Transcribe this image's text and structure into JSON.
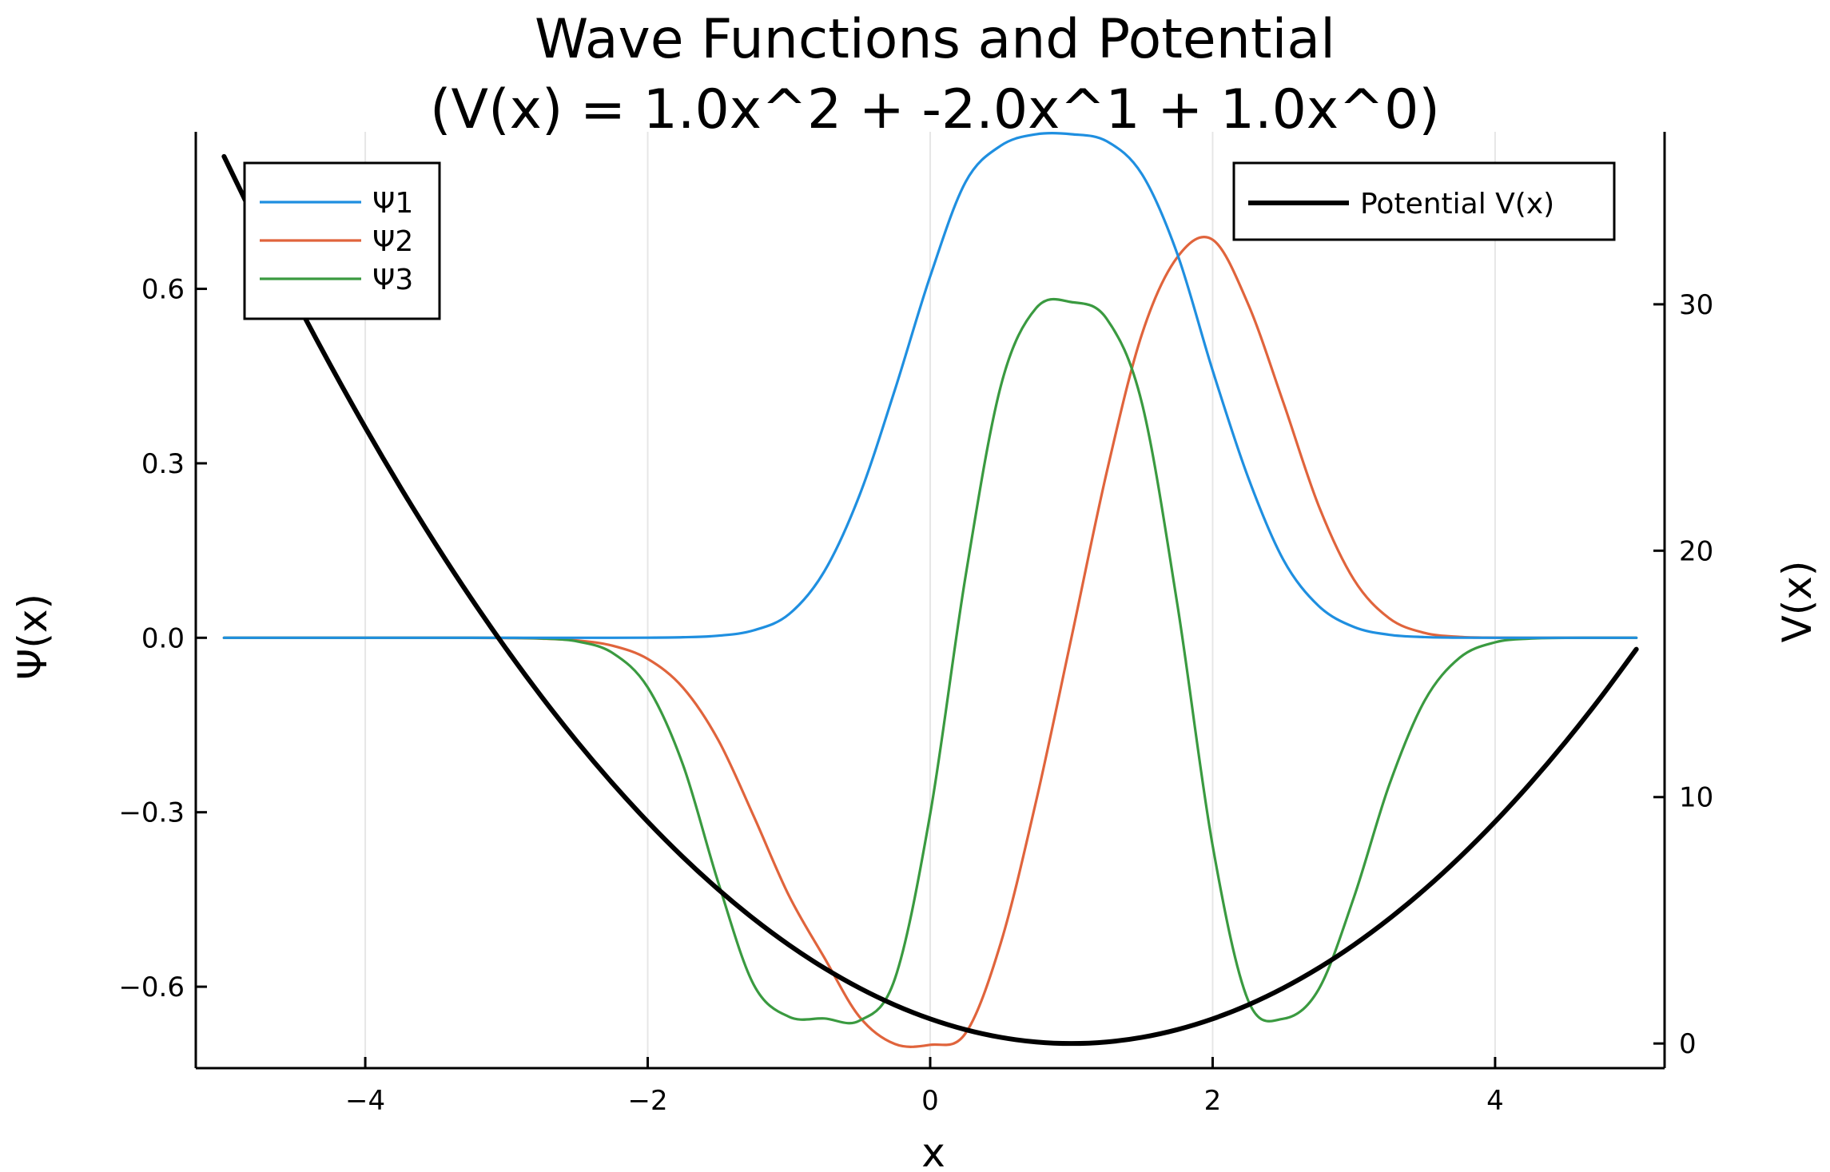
{
  "chart_data": {
    "type": "line",
    "title": "Wave Functions and Potential",
    "subtitle": "(V(x) = 1.0x^2 + -2.0x^1 + 1.0x^0)",
    "xlabel": "x",
    "ylabel": "Ψ(x)",
    "y2label": "V(x)",
    "xlim": [
      -5.2,
      5.2
    ],
    "ylim": [
      -0.74,
      0.87
    ],
    "y2lim": [
      -1.0,
      37.0
    ],
    "xticks": [
      -4,
      -2,
      0,
      2,
      4
    ],
    "xtick_labels": [
      "−4",
      "−2",
      "0",
      "2",
      "4"
    ],
    "yticks": [
      -0.6,
      -0.3,
      0.0,
      0.3,
      0.6
    ],
    "ytick_labels": [
      "−0.6",
      "−0.3",
      "0.0",
      "0.3",
      "0.6"
    ],
    "y2ticks": [
      0,
      10,
      20,
      30
    ],
    "y2tick_labels": [
      "0",
      "10",
      "20",
      "30"
    ],
    "grid": "vertical",
    "legend_left_position": "top-left",
    "legend_right_position": "top-right",
    "x": [
      -5.0,
      -4.75,
      -4.5,
      -4.25,
      -4.0,
      -3.75,
      -3.5,
      -3.25,
      -3.0,
      -2.75,
      -2.5,
      -2.25,
      -2.0,
      -1.75,
      -1.5,
      -1.25,
      -1.0,
      -0.75,
      -0.5,
      -0.25,
      0.0,
      0.25,
      0.5,
      0.75,
      1.0,
      1.25,
      1.5,
      1.75,
      2.0,
      2.25,
      2.5,
      2.75,
      3.0,
      3.25,
      3.5,
      3.75,
      4.0,
      4.25,
      4.5,
      4.75,
      5.0
    ],
    "series": [
      {
        "name": "Ψ1",
        "axis": "left",
        "color": "#1f8fe0",
        "values": [
          0.0,
          0.0,
          0.0,
          0.0,
          0.0,
          0.0,
          0.0,
          0.0,
          0.0,
          0.0,
          0.0,
          0.0,
          0.0002,
          0.0009,
          0.0036,
          0.0128,
          0.0405,
          0.114,
          0.2453,
          0.4263,
          0.6215,
          0.7835,
          0.8462,
          0.8658,
          0.8659,
          0.8538,
          0.7969,
          0.66,
          0.4596,
          0.2767,
          0.1344,
          0.0549,
          0.0186,
          0.0052,
          0.0012,
          0.0002,
          0.0,
          0.0,
          0.0,
          0.0,
          0.0
        ]
      },
      {
        "name": "Ψ2",
        "axis": "left",
        "color": "#e0643c",
        "values": [
          0.0,
          0.0,
          0.0,
          0.0,
          0.0,
          0.0,
          0.0,
          -0.0001,
          -0.0004,
          -0.0014,
          -0.0046,
          -0.0136,
          -0.0364,
          -0.0859,
          -0.1761,
          -0.3065,
          -0.4434,
          -0.5498,
          -0.6519,
          -0.6985,
          -0.6999,
          -0.6802,
          -0.5247,
          -0.2809,
          0.0,
          0.2848,
          0.5226,
          0.6544,
          0.6845,
          0.5745,
          0.405,
          0.2274,
          0.1001,
          0.0336,
          0.0084,
          0.0015,
          0.0002,
          0.0,
          0.0,
          0.0,
          0.0
        ]
      },
      {
        "name": "Ψ3",
        "axis": "left",
        "color": "#3a9a40",
        "values": [
          0.0,
          0.0,
          0.0,
          0.0,
          0.0,
          0.0,
          0.0,
          0.0,
          -0.0002,
          -0.0012,
          -0.0062,
          -0.0259,
          -0.0853,
          -0.2186,
          -0.4211,
          -0.5963,
          -0.6516,
          -0.6546,
          -0.6583,
          -0.5864,
          -0.3031,
          0.1051,
          0.4329,
          0.5669,
          0.5772,
          0.5484,
          0.4028,
          0.0576,
          -0.3574,
          -0.6228,
          -0.6551,
          -0.6047,
          -0.4465,
          -0.2533,
          -0.1086,
          -0.0341,
          -0.0078,
          -0.0013,
          -0.0002,
          0.0,
          0.0
        ]
      },
      {
        "name": "Potential V(x)",
        "axis": "right",
        "color": "#000000",
        "values": [
          36.0,
          33.0625,
          30.25,
          27.5625,
          25.0,
          22.5625,
          20.25,
          18.0625,
          16.0,
          14.0625,
          12.25,
          10.5625,
          9.0,
          7.5625,
          6.25,
          5.0625,
          4.0,
          3.0625,
          2.25,
          1.5625,
          1.0,
          0.5625,
          0.25,
          0.0625,
          0.0,
          0.0625,
          0.25,
          0.5625,
          1.0,
          1.5625,
          2.25,
          3.0625,
          4.0,
          5.0625,
          6.25,
          7.5625,
          9.0,
          10.5625,
          12.25,
          14.0625,
          16.0
        ]
      }
    ]
  }
}
